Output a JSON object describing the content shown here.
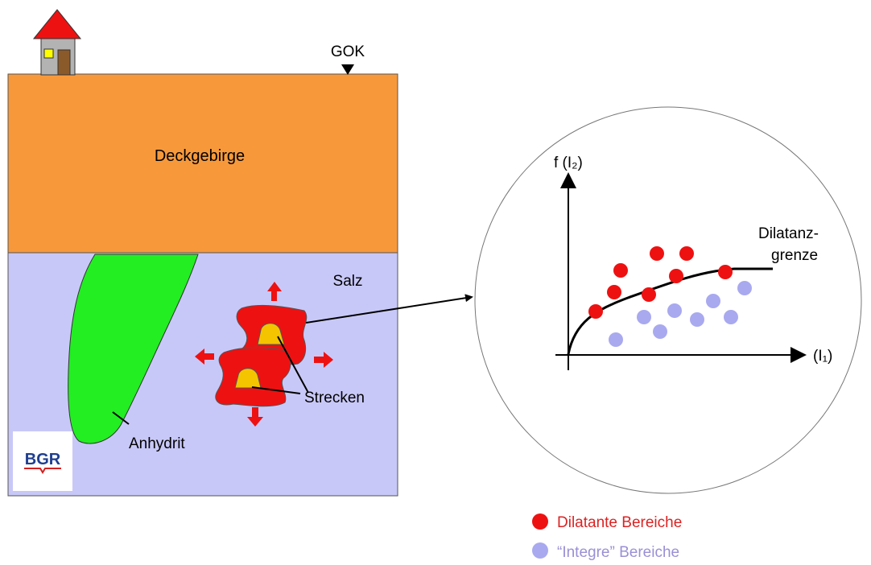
{
  "labels": {
    "gok": "GOK",
    "deckgebirge": "Deckgebirge",
    "salz": "Salz",
    "anhydrit": "Anhydrit",
    "strecken": "Strecken",
    "logo": "BGR"
  },
  "graph": {
    "y_axis_label": "f (I₂)",
    "x_axis_label": "(I₁)",
    "curve_label_line1": "Dilatanz-",
    "curve_label_line2": "grenze"
  },
  "legend": {
    "dilatant": "Dilatante Bereiche",
    "integre": "“Integre” Bereiche"
  },
  "colors": {
    "deckgebirge": "#f7993b",
    "salz": "#c8c8f8",
    "anhydrit": "#22ee22",
    "excavation": "#ee1111",
    "tunnel": "#f5c400",
    "dilatant_point": "#ee1111",
    "integre_point": "#a9a9f0",
    "dilatant_text": "#dd2222",
    "integre_text": "#9a8fd6"
  }
}
